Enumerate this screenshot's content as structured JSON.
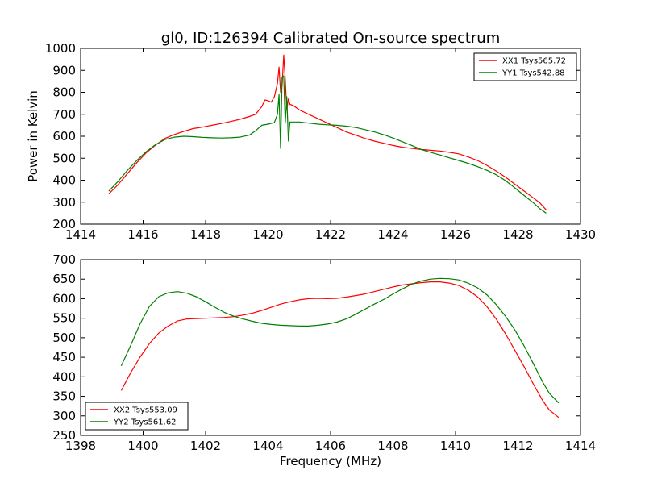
{
  "figure": {
    "title": "gl0, ID:126394 Calibrated On-source spectrum",
    "shared_xlabel": "Frequency (MHz)"
  },
  "colors": {
    "xx": "#ff0000",
    "yy": "#008000",
    "axes": "#000000",
    "background": "#ffffff"
  },
  "chart_data": [
    {
      "type": "line",
      "title": "gl0, ID:126394 Calibrated On-source spectrum",
      "xlabel": "",
      "ylabel": "Power in Kelvin",
      "xlim": [
        1414,
        1430
      ],
      "ylim": [
        200,
        1000
      ],
      "xticks": [
        1414,
        1416,
        1418,
        1420,
        1422,
        1424,
        1426,
        1428,
        1430
      ],
      "yticks": [
        200,
        300,
        400,
        500,
        600,
        700,
        800,
        900,
        1000
      ],
      "legend_position": "top-right",
      "grid": false,
      "series": [
        {
          "name": "XX1 Tsys565.72",
          "color": "#ff0000",
          "points": [
            [
              1414.9,
              338
            ],
            [
              1415.2,
              380
            ],
            [
              1415.5,
              430
            ],
            [
              1415.8,
              480
            ],
            [
              1416.1,
              525
            ],
            [
              1416.4,
              560
            ],
            [
              1416.7,
              590
            ],
            [
              1417.0,
              608
            ],
            [
              1417.3,
              622
            ],
            [
              1417.6,
              635
            ],
            [
              1417.9,
              642
            ],
            [
              1418.2,
              650
            ],
            [
              1418.5,
              658
            ],
            [
              1418.8,
              667
            ],
            [
              1419.1,
              677
            ],
            [
              1419.4,
              690
            ],
            [
              1419.6,
              700
            ],
            [
              1419.8,
              735
            ],
            [
              1419.9,
              765
            ],
            [
              1420.0,
              762
            ],
            [
              1420.1,
              755
            ],
            [
              1420.2,
              780
            ],
            [
              1420.3,
              840
            ],
            [
              1420.35,
              915
            ],
            [
              1420.4,
              800
            ],
            [
              1420.45,
              830
            ],
            [
              1420.5,
              970
            ],
            [
              1420.55,
              860
            ],
            [
              1420.6,
              720
            ],
            [
              1420.65,
              770
            ],
            [
              1420.7,
              745
            ],
            [
              1420.8,
              740
            ],
            [
              1421.0,
              720
            ],
            [
              1421.3,
              700
            ],
            [
              1421.6,
              680
            ],
            [
              1421.9,
              660
            ],
            [
              1422.2,
              640
            ],
            [
              1422.5,
              620
            ],
            [
              1422.8,
              605
            ],
            [
              1423.1,
              590
            ],
            [
              1423.4,
              578
            ],
            [
              1423.7,
              568
            ],
            [
              1424.0,
              558
            ],
            [
              1424.3,
              550
            ],
            [
              1424.6,
              545
            ],
            [
              1424.9,
              540
            ],
            [
              1425.2,
              536
            ],
            [
              1425.5,
              533
            ],
            [
              1425.8,
              527
            ],
            [
              1426.1,
              520
            ],
            [
              1426.4,
              506
            ],
            [
              1426.7,
              490
            ],
            [
              1427.0,
              468
            ],
            [
              1427.3,
              442
            ],
            [
              1427.6,
              414
            ],
            [
              1427.9,
              382
            ],
            [
              1428.2,
              350
            ],
            [
              1428.5,
              318
            ],
            [
              1428.7,
              297
            ],
            [
              1428.9,
              265
            ]
          ]
        },
        {
          "name": "YY1 Tsys542.88",
          "color": "#008000",
          "points": [
            [
              1414.9,
              350
            ],
            [
              1415.2,
              395
            ],
            [
              1415.5,
              445
            ],
            [
              1415.8,
              490
            ],
            [
              1416.1,
              530
            ],
            [
              1416.4,
              562
            ],
            [
              1416.7,
              585
            ],
            [
              1417.0,
              596
            ],
            [
              1417.3,
              600
            ],
            [
              1417.6,
              598
            ],
            [
              1417.9,
              595
            ],
            [
              1418.2,
              593
            ],
            [
              1418.5,
              592
            ],
            [
              1418.8,
              593
            ],
            [
              1419.1,
              596
            ],
            [
              1419.4,
              605
            ],
            [
              1419.6,
              625
            ],
            [
              1419.8,
              650
            ],
            [
              1420.0,
              655
            ],
            [
              1420.2,
              662
            ],
            [
              1420.3,
              700
            ],
            [
              1420.35,
              790
            ],
            [
              1420.4,
              545
            ],
            [
              1420.45,
              870
            ],
            [
              1420.5,
              875
            ],
            [
              1420.55,
              660
            ],
            [
              1420.6,
              780
            ],
            [
              1420.65,
              578
            ],
            [
              1420.7,
              665
            ],
            [
              1421.0,
              665
            ],
            [
              1421.3,
              660
            ],
            [
              1421.6,
              655
            ],
            [
              1421.9,
              652
            ],
            [
              1422.2,
              650
            ],
            [
              1422.5,
              646
            ],
            [
              1422.8,
              640
            ],
            [
              1423.1,
              630
            ],
            [
              1423.4,
              620
            ],
            [
              1423.7,
              607
            ],
            [
              1424.0,
              592
            ],
            [
              1424.3,
              575
            ],
            [
              1424.6,
              558
            ],
            [
              1424.9,
              540
            ],
            [
              1425.2,
              527
            ],
            [
              1425.5,
              515
            ],
            [
              1425.8,
              502
            ],
            [
              1426.1,
              490
            ],
            [
              1426.4,
              477
            ],
            [
              1426.7,
              462
            ],
            [
              1427.0,
              445
            ],
            [
              1427.3,
              425
            ],
            [
              1427.6,
              398
            ],
            [
              1427.9,
              365
            ],
            [
              1428.2,
              330
            ],
            [
              1428.5,
              296
            ],
            [
              1428.7,
              270
            ],
            [
              1428.9,
              250
            ]
          ]
        }
      ]
    },
    {
      "type": "line",
      "title": "",
      "xlabel": "Frequency (MHz)",
      "ylabel": "",
      "xlim": [
        1398,
        1414
      ],
      "ylim": [
        250,
        700
      ],
      "xticks": [
        1398,
        1400,
        1402,
        1404,
        1406,
        1408,
        1410,
        1412,
        1414
      ],
      "yticks": [
        250,
        300,
        350,
        400,
        450,
        500,
        550,
        600,
        650,
        700
      ],
      "legend_position": "bottom-left",
      "grid": false,
      "series": [
        {
          "name": "XX2 Tsys553.09",
          "color": "#ff0000",
          "points": [
            [
              1399.3,
              365
            ],
            [
              1399.6,
              410
            ],
            [
              1399.9,
              450
            ],
            [
              1400.2,
              485
            ],
            [
              1400.5,
              512
            ],
            [
              1400.8,
              530
            ],
            [
              1401.1,
              543
            ],
            [
              1401.4,
              548
            ],
            [
              1401.7,
              549
            ],
            [
              1402.0,
              550
            ],
            [
              1402.3,
              551
            ],
            [
              1402.6,
              552
            ],
            [
              1402.9,
              554
            ],
            [
              1403.2,
              558
            ],
            [
              1403.5,
              563
            ],
            [
              1403.8,
              570
            ],
            [
              1404.1,
              578
            ],
            [
              1404.4,
              586
            ],
            [
              1404.7,
              592
            ],
            [
              1405.0,
              597
            ],
            [
              1405.3,
              600
            ],
            [
              1405.6,
              601
            ],
            [
              1405.9,
              600
            ],
            [
              1406.2,
              601
            ],
            [
              1406.5,
              604
            ],
            [
              1406.8,
              608
            ],
            [
              1407.1,
              612
            ],
            [
              1407.4,
              618
            ],
            [
              1407.7,
              624
            ],
            [
              1408.0,
              630
            ],
            [
              1408.3,
              635
            ],
            [
              1408.6,
              638
            ],
            [
              1408.9,
              641
            ],
            [
              1409.2,
              643
            ],
            [
              1409.5,
              643
            ],
            [
              1409.8,
              640
            ],
            [
              1410.1,
              634
            ],
            [
              1410.4,
              622
            ],
            [
              1410.7,
              605
            ],
            [
              1411.0,
              580
            ],
            [
              1411.3,
              548
            ],
            [
              1411.6,
              510
            ],
            [
              1411.9,
              468
            ],
            [
              1412.2,
              425
            ],
            [
              1412.5,
              380
            ],
            [
              1412.8,
              338
            ],
            [
              1413.0,
              315
            ],
            [
              1413.3,
              296
            ]
          ]
        },
        {
          "name": "YY2 Tsys561.62",
          "color": "#008000",
          "points": [
            [
              1399.3,
              428
            ],
            [
              1399.6,
              480
            ],
            [
              1399.9,
              535
            ],
            [
              1400.2,
              580
            ],
            [
              1400.5,
              605
            ],
            [
              1400.8,
              615
            ],
            [
              1401.1,
              618
            ],
            [
              1401.4,
              614
            ],
            [
              1401.7,
              605
            ],
            [
              1402.0,
              592
            ],
            [
              1402.3,
              578
            ],
            [
              1402.6,
              565
            ],
            [
              1402.9,
              555
            ],
            [
              1403.2,
              548
            ],
            [
              1403.5,
              542
            ],
            [
              1403.8,
              537
            ],
            [
              1404.1,
              534
            ],
            [
              1404.4,
              532
            ],
            [
              1404.7,
              531
            ],
            [
              1405.0,
              530
            ],
            [
              1405.3,
              530
            ],
            [
              1405.6,
              532
            ],
            [
              1405.9,
              535
            ],
            [
              1406.2,
              540
            ],
            [
              1406.5,
              548
            ],
            [
              1406.8,
              560
            ],
            [
              1407.1,
              573
            ],
            [
              1407.4,
              586
            ],
            [
              1407.7,
              598
            ],
            [
              1408.0,
              612
            ],
            [
              1408.3,
              625
            ],
            [
              1408.6,
              637
            ],
            [
              1408.9,
              645
            ],
            [
              1409.2,
              650
            ],
            [
              1409.5,
              652
            ],
            [
              1409.8,
              651
            ],
            [
              1410.1,
              648
            ],
            [
              1410.4,
              640
            ],
            [
              1410.7,
              628
            ],
            [
              1411.0,
              610
            ],
            [
              1411.3,
              585
            ],
            [
              1411.6,
              555
            ],
            [
              1411.9,
              520
            ],
            [
              1412.2,
              478
            ],
            [
              1412.5,
              432
            ],
            [
              1412.8,
              385
            ],
            [
              1413.0,
              358
            ],
            [
              1413.3,
              333
            ]
          ]
        }
      ]
    }
  ]
}
